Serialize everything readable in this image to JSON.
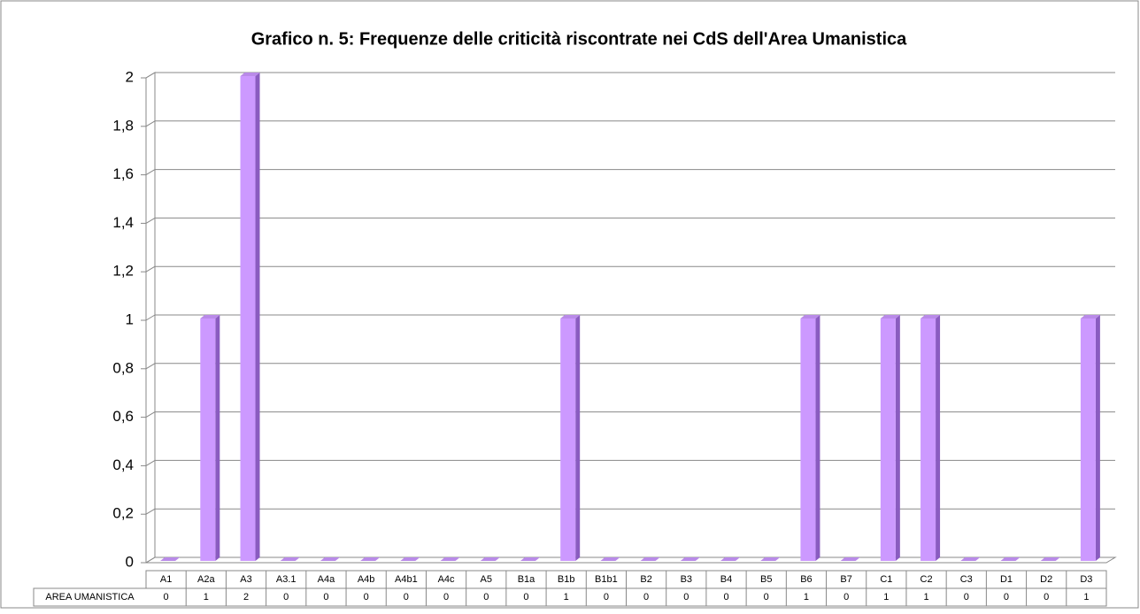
{
  "chart_data": {
    "type": "bar",
    "title": "Grafico n. 5: Frequenze delle criticità riscontrate nei CdS dell'Area Umanistica",
    "categories": [
      "A1",
      "A2a",
      "A3",
      "A3.1",
      "A4a",
      "A4b",
      "A4b1",
      "A4c",
      "A5",
      "B1a",
      "B1b",
      "B1b1",
      "B2",
      "B3",
      "B4",
      "B5",
      "B6",
      "B7",
      "C1",
      "C2",
      "C3",
      "D1",
      "D2",
      "D3"
    ],
    "series": [
      {
        "name": "AREA UMANISTICA",
        "color": "#cc99ff",
        "values": [
          0,
          1,
          2,
          0,
          0,
          0,
          0,
          0,
          0,
          0,
          1,
          0,
          0,
          0,
          0,
          0,
          1,
          0,
          1,
          1,
          0,
          0,
          0,
          1
        ]
      }
    ],
    "ylim": [
      0,
      2
    ],
    "yticks": [
      0,
      {
        "value": 0.2,
        "label": "0,2"
      },
      {
        "value": 0.4,
        "label": "0,4"
      },
      {
        "value": 0.6,
        "label": "0,6"
      },
      {
        "value": 0.8,
        "label": "0,8"
      },
      1,
      {
        "value": 1.2,
        "label": "1,2"
      },
      {
        "value": 1.4,
        "label": "1,4"
      },
      {
        "value": 1.6,
        "label": "1,6"
      },
      {
        "value": 1.8,
        "label": "1,8"
      },
      2
    ],
    "grid": true
  }
}
